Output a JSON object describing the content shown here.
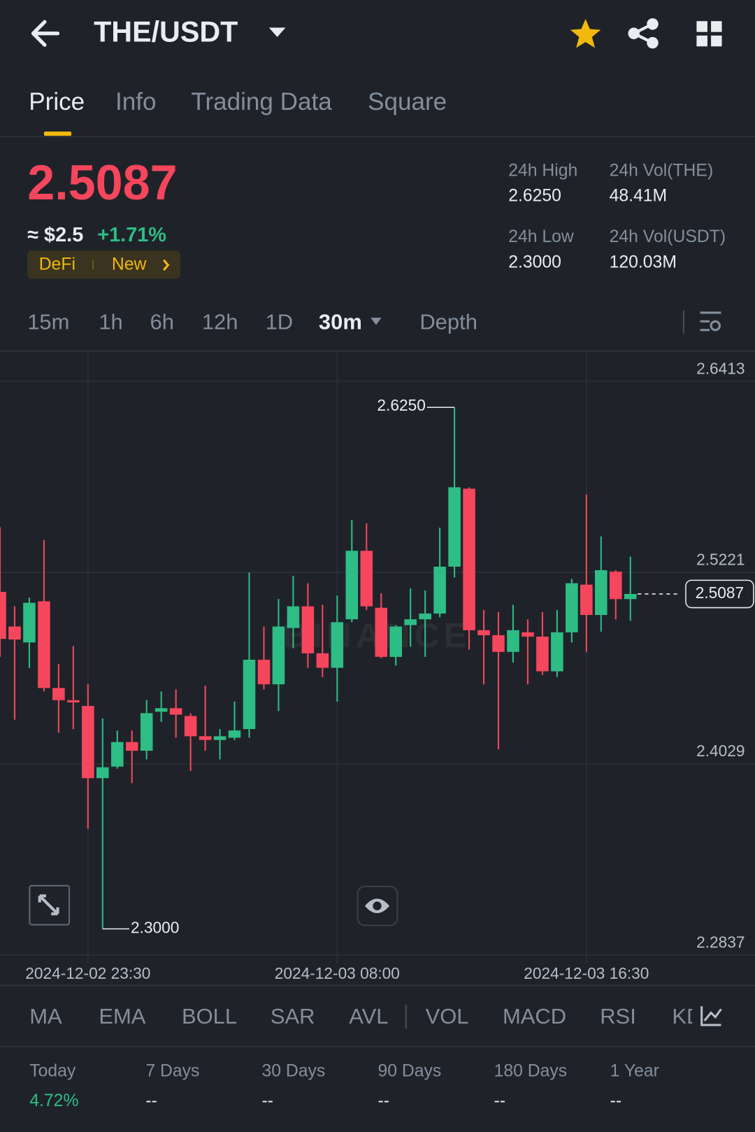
{
  "header": {
    "pair": "THE/USDT"
  },
  "tabs": [
    "Price",
    "Info",
    "Trading Data",
    "Square"
  ],
  "price": {
    "last": "2.5087",
    "approx": "≈ $2.5",
    "change": "+1.71%",
    "tags": [
      "DeFi",
      "New"
    ]
  },
  "stats": [
    {
      "label": "24h High",
      "value": "2.6250"
    },
    {
      "label": "24h Vol(THE)",
      "value": "48.41M"
    },
    {
      "label": "24h Low",
      "value": "2.3000"
    },
    {
      "label": "24h Vol(USDT)",
      "value": "120.03M"
    }
  ],
  "intervals": [
    "15m",
    "1h",
    "6h",
    "12h",
    "1D",
    "30m",
    "Depth"
  ],
  "chart_data": {
    "type": "candlestick",
    "watermark": "BINANCE",
    "categories": [
      null,
      null,
      null,
      null,
      null,
      null,
      "2024-12-02 23:30",
      null,
      null,
      null,
      null,
      null,
      null,
      null,
      null,
      null,
      null,
      null,
      null,
      null,
      null,
      null,
      null,
      "2024-12-03 08:00",
      null,
      null,
      null,
      null,
      null,
      null,
      null,
      null,
      null,
      null,
      null,
      null,
      null,
      null,
      null,
      null,
      "2024-12-03 16:30",
      null,
      null,
      null
    ],
    "open": [
      2.51,
      2.4884,
      2.4785,
      2.5041,
      2.4501,
      2.4425,
      2.4389,
      2.3939,
      2.4011,
      2.4164,
      2.411,
      2.4353,
      2.4375,
      2.4326,
      2.42,
      2.4177,
      2.4191,
      2.4245,
      2.4677,
      2.4524,
      2.4875,
      2.501,
      2.4717,
      2.4627,
      2.4929,
      2.5356,
      2.5001,
      2.4695,
      2.4893,
      2.4929,
      2.4965,
      2.5257,
      2.5743,
      2.4861,
      2.483,
      2.4726,
      2.4848,
      2.4821,
      2.4605,
      2.4848,
      2.5145,
      2.4956,
      2.5226,
      2.5055
    ],
    "high": [
      2.5504,
      2.501,
      2.5064,
      2.5423,
      2.465,
      2.4762,
      2.4524,
      2.4312,
      2.4236,
      2.4236,
      2.4425,
      2.4479,
      2.4492,
      2.4344,
      2.4515,
      2.4245,
      2.4416,
      2.5221,
      2.4884,
      2.5055,
      2.5199,
      2.5154,
      2.5019,
      2.5077,
      2.5549,
      2.5527,
      2.5091,
      2.4893,
      2.5122,
      2.5109,
      2.55,
      2.625,
      2.5752,
      2.4987,
      2.4974,
      2.5019,
      2.4929,
      2.4974,
      2.4987,
      2.5181,
      2.5707,
      2.5446,
      2.5235,
      2.532
    ],
    "low": [
      2.4695,
      2.4303,
      2.4627,
      2.4479,
      2.4222,
      2.4245,
      2.3624,
      2.3,
      2.3998,
      2.3908,
      2.4056,
      2.429,
      2.4191,
      2.3984,
      2.411,
      2.4056,
      2.4177,
      2.4191,
      2.4492,
      2.4357,
      2.4749,
      2.4627,
      2.4569,
      2.4416,
      2.4911,
      2.4987,
      2.4686,
      2.4641,
      2.4758,
      2.4695,
      2.4942,
      2.519,
      2.474,
      2.4524,
      2.4119,
      2.4659,
      2.4524,
      2.4582,
      2.4569,
      2.4785,
      2.4726,
      2.4852,
      2.4929,
      2.492
    ],
    "close": [
      2.4807,
      2.4803,
      2.5032,
      2.4501,
      2.4425,
      2.4411,
      2.3939,
      2.4007,
      2.4164,
      2.411,
      2.4344,
      2.4375,
      2.4335,
      2.42,
      2.4177,
      2.42,
      2.4236,
      2.4677,
      2.4524,
      2.4884,
      2.501,
      2.4717,
      2.4627,
      2.4911,
      2.5356,
      2.501,
      2.4695,
      2.4884,
      2.4929,
      2.4965,
      2.5257,
      2.5752,
      2.4861,
      2.483,
      2.4726,
      2.4861,
      2.4821,
      2.4605,
      2.4848,
      2.5154,
      2.4956,
      2.5235,
      2.5055,
      2.5087
    ],
    "up_color": "#2ebd85",
    "down_color": "#f6465d",
    "ylim": [
      2.2837,
      2.6597
    ],
    "yticks": [
      2.6413,
      2.5221,
      2.4029,
      2.2837
    ],
    "grid": true,
    "high_label": "2.6250",
    "low_label": "2.3000",
    "last_label": "2.5087"
  },
  "indicators": [
    "MA",
    "EMA",
    "BOLL",
    "SAR",
    "AVL",
    "VOL",
    "MACD",
    "RSI",
    "KD"
  ],
  "performance": [
    {
      "period": "Today",
      "value": "4.72%"
    },
    {
      "period": "7 Days",
      "value": "--"
    },
    {
      "period": "30 Days",
      "value": "--"
    },
    {
      "period": "90 Days",
      "value": "--"
    },
    {
      "period": "180 Days",
      "value": "--"
    },
    {
      "period": "1 Year",
      "value": "--"
    }
  ]
}
